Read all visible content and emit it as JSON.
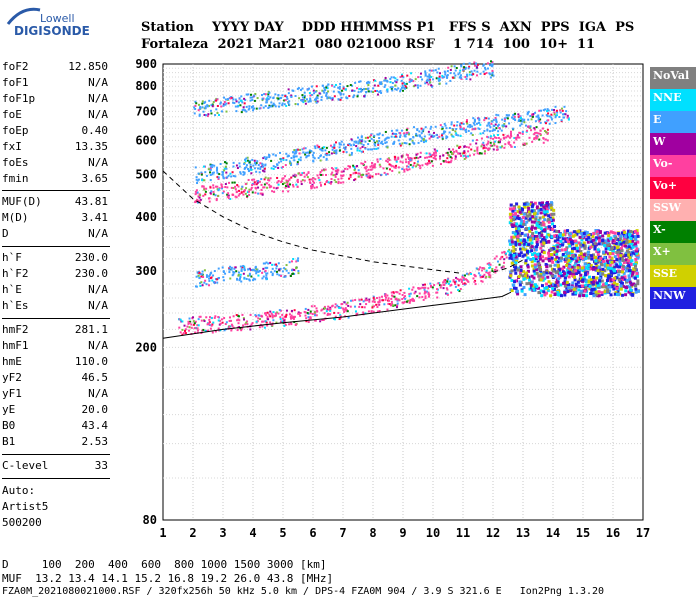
{
  "logo": {
    "line1": "Lowell",
    "line2": "DIGISONDE"
  },
  "header": {
    "labels": "Station    YYYY DAY    DDD HHMMSS P1   FFS S  AXN  PPS  IGA  PS",
    "values": "Fortaleza  2021 Mar21  080 021000 RSF    1 714  100  10+  11"
  },
  "params_group1": [
    {
      "label": "foF2",
      "value": "12.850"
    },
    {
      "label": "foF1",
      "value": "N/A"
    },
    {
      "label": "foF1p",
      "value": "N/A"
    },
    {
      "label": "foE",
      "value": "N/A"
    },
    {
      "label": "foEp",
      "value": "0.40"
    },
    {
      "label": "fxI",
      "value": "13.35"
    },
    {
      "label": "foEs",
      "value": "N/A"
    },
    {
      "label": "fmin",
      "value": "3.65"
    }
  ],
  "params_group2": [
    {
      "label": "MUF(D)",
      "value": "43.81"
    },
    {
      "label": "M(D)",
      "value": "3.41"
    },
    {
      "label": "D",
      "value": "N/A"
    }
  ],
  "params_group3": [
    {
      "label": "h`F",
      "value": "230.0"
    },
    {
      "label": "h`F2",
      "value": "230.0"
    },
    {
      "label": "h`E",
      "value": "N/A"
    },
    {
      "label": "h`Es",
      "value": "N/A"
    }
  ],
  "params_group4": [
    {
      "label": "hmF2",
      "value": "281.1"
    },
    {
      "label": "hmF1",
      "value": "N/A"
    },
    {
      "label": "hmE",
      "value": "110.0"
    },
    {
      "label": "yF2",
      "value": "46.5"
    },
    {
      "label": "yF1",
      "value": "N/A"
    },
    {
      "label": "yE",
      "value": "20.0"
    },
    {
      "label": "B0",
      "value": "43.4"
    },
    {
      "label": "B1",
      "value": "2.53"
    }
  ],
  "clevel": {
    "label": "C-level",
    "value": "33"
  },
  "auto": {
    "line1": "Auto:",
    "line2": "Artist5",
    "line3": "500200"
  },
  "legend": [
    {
      "label": "NoVal",
      "color": "#808080"
    },
    {
      "label": "NNE",
      "color": "#00e0ff"
    },
    {
      "label": "E",
      "color": "#40a0ff"
    },
    {
      "label": "W",
      "color": "#a000a0"
    },
    {
      "label": "Vo-",
      "color": "#ff40a0"
    },
    {
      "label": "Vo+",
      "color": "#ff0040"
    },
    {
      "label": "SSW",
      "color": "#ffb0b0"
    },
    {
      "label": "X-",
      "color": "#008000"
    },
    {
      "label": "X+",
      "color": "#80c040"
    },
    {
      "label": "SSE",
      "color": "#d0d000"
    },
    {
      "label": "NNW",
      "color": "#2020e0"
    }
  ],
  "footer": {
    "line1": "D     100  200  400  600  800 1000 1500 3000 [km]",
    "line2": "MUF  13.2 13.4 14.1 15.2 16.8 19.2 26.0 43.8 [MHz]",
    "line3": "FZA0M_2021080021000.RSF / 320fx256h 50 kHz 5.0 km / DPS-4 FZA0M 904 / 3.9 S 321.6 E   Ion2Png 1.3.20"
  },
  "chart_data": {
    "type": "scatter",
    "x_ticks": [
      "1",
      "2",
      "3",
      "4",
      "5",
      "6",
      "7",
      "8",
      "9",
      "10",
      "11",
      "12",
      "13",
      "14",
      "15",
      "16",
      "17"
    ],
    "y_ticks": [
      "80",
      "200",
      "300",
      "400",
      "500",
      "600",
      "700",
      "800",
      "900"
    ],
    "xlim": [
      1,
      17
    ],
    "ylim": [
      80,
      900
    ],
    "y_scale": "log",
    "grid": true,
    "series": [
      {
        "color": "#ff40a0",
        "trace": [
          [
            1.5,
            225
          ],
          [
            3,
            228
          ],
          [
            5,
            235
          ],
          [
            7,
            245
          ],
          [
            9,
            262
          ],
          [
            10,
            272
          ],
          [
            11,
            285
          ],
          [
            11.8,
            302
          ],
          [
            12.3,
            320
          ],
          [
            12.6,
            345
          ]
        ]
      },
      {
        "color": "#40a0ff",
        "trace": [
          [
            2,
            290
          ],
          [
            3,
            295
          ],
          [
            4,
            300
          ],
          [
            5,
            305
          ],
          [
            5.5,
            310
          ]
        ]
      },
      {
        "color": "#ff40a0",
        "trace": [
          [
            2,
            450
          ],
          [
            4,
            470
          ],
          [
            6,
            490
          ],
          [
            8,
            520
          ],
          [
            10,
            550
          ],
          [
            11,
            570
          ],
          [
            12,
            595
          ],
          [
            13,
            615
          ],
          [
            13.8,
            625
          ]
        ]
      },
      {
        "color": "#40a0ff",
        "trace": [
          [
            2,
            500
          ],
          [
            4,
            530
          ],
          [
            6,
            560
          ],
          [
            8,
            600
          ],
          [
            10,
            630
          ],
          [
            12,
            660
          ],
          [
            14,
            690
          ],
          [
            14.5,
            700
          ]
        ]
      },
      {
        "color": "#40a0ff",
        "trace": [
          [
            2,
            710
          ],
          [
            4,
            740
          ],
          [
            6,
            770
          ],
          [
            8,
            800
          ],
          [
            10,
            840
          ],
          [
            11,
            870
          ],
          [
            12,
            880
          ]
        ]
      }
    ],
    "curves": [
      {
        "style": "dashed",
        "points": [
          [
            1,
            510
          ],
          [
            2,
            440
          ],
          [
            3,
            400
          ],
          [
            4,
            370
          ],
          [
            5,
            350
          ],
          [
            6,
            335
          ],
          [
            8,
            315
          ],
          [
            10,
            302
          ],
          [
            11,
            296
          ]
        ]
      },
      {
        "style": "dashed",
        "points": [
          [
            12,
            298
          ],
          [
            12.5,
            305
          ],
          [
            13,
            318
          ]
        ]
      },
      {
        "style": "solid",
        "points": [
          [
            1,
            210
          ],
          [
            3,
            220
          ],
          [
            5,
            228
          ],
          [
            7,
            235
          ],
          [
            9,
            245
          ],
          [
            11,
            255
          ],
          [
            12.3,
            262
          ],
          [
            12.6,
            268
          ]
        ]
      }
    ]
  }
}
